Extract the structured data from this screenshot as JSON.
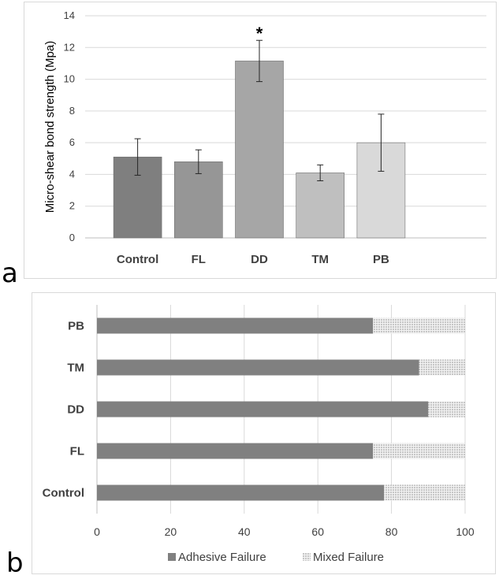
{
  "panel_labels": {
    "a": "a",
    "b": "b"
  },
  "chart_data": [
    {
      "type": "bar",
      "panel": "a",
      "title": "",
      "xlabel": "",
      "ylabel": "Micro-shear bond strength (Mpa)",
      "ylim": [
        0,
        14
      ],
      "yticks": [
        0,
        2,
        4,
        6,
        8,
        10,
        12,
        14
      ],
      "grid": true,
      "categories": [
        "Control",
        "FL",
        "DD",
        "TM",
        "PB"
      ],
      "values": [
        5.1,
        4.8,
        11.15,
        4.1,
        6.0
      ],
      "error": [
        1.15,
        0.75,
        1.3,
        0.5,
        1.8
      ],
      "colors": [
        "#7f7f7f",
        "#969696",
        "#a6a6a6",
        "#bfbfbf",
        "#d9d9d9"
      ],
      "annotations": [
        {
          "category": "DD",
          "text": "*"
        }
      ]
    },
    {
      "type": "bar",
      "orientation": "horizontal",
      "stacked": true,
      "panel": "b",
      "title": "",
      "xlabel": "",
      "ylabel": "",
      "xlim": [
        0,
        100
      ],
      "xticks": [
        0,
        20,
        40,
        60,
        80,
        100
      ],
      "grid": true,
      "legend_position": "bottom",
      "categories": [
        "PB",
        "TM",
        "DD",
        "FL",
        "Control"
      ],
      "series": [
        {
          "name": "Adhesive Failure",
          "values": [
            75,
            87.5,
            90,
            75,
            78
          ],
          "color": "#808080",
          "pattern": "solid"
        },
        {
          "name": "Mixed Failure",
          "values": [
            25,
            12.5,
            10,
            25,
            22
          ],
          "color": "#bfbfbf",
          "pattern": "dotted"
        }
      ]
    }
  ]
}
